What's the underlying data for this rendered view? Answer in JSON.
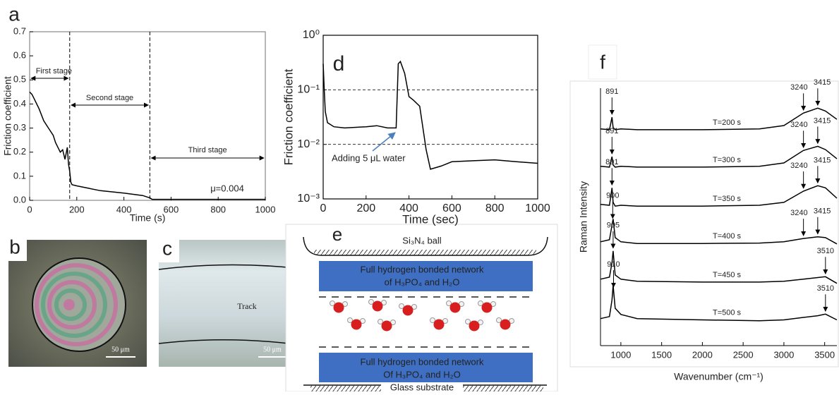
{
  "panel_labels": [
    "a",
    "b",
    "c",
    "d",
    "e",
    "f"
  ],
  "chart_data": [
    {
      "type": "line",
      "xlabel": "Time (s)",
      "ylabel": "Friction coefficient",
      "color": "#000000",
      "x": [
        0,
        10,
        20,
        40,
        60,
        80,
        100,
        110,
        120,
        130,
        140,
        150,
        160,
        165,
        170,
        175,
        180,
        200,
        250,
        300,
        400,
        480,
        510,
        520,
        600,
        800,
        1000
      ],
      "values": [
        0.45,
        0.44,
        0.42,
        0.38,
        0.33,
        0.3,
        0.27,
        0.24,
        0.22,
        0.2,
        0.21,
        0.17,
        0.22,
        0.15,
        0.12,
        0.075,
        0.065,
        0.06,
        0.05,
        0.04,
        0.03,
        0.02,
        0.01,
        0.004,
        0.004,
        0.004,
        0.004
      ],
      "xlim": [
        0,
        1000
      ],
      "ylim": [
        0,
        0.7
      ],
      "xticks": [
        0,
        200,
        400,
        600,
        800,
        1000
      ],
      "yticks": [
        {
          "value": 0,
          "label": "0.0"
        },
        0.1,
        0.2,
        0.3,
        0.4,
        0.5,
        0.6,
        0.7
      ],
      "stage_boundaries": [
        170,
        510
      ],
      "annotations": [
        "First stage",
        "Second stage",
        "Third stage",
        "μ=0.004"
      ]
    },
    {
      "type": "line",
      "xlabel": "Time (sec)",
      "ylabel": "Friction coefficient",
      "color": "#000000",
      "yscale": "log",
      "grid": true,
      "x": [
        0,
        5,
        10,
        20,
        50,
        100,
        200,
        250,
        300,
        340,
        350,
        360,
        380,
        400,
        420,
        450,
        480,
        500,
        550,
        600,
        700,
        800,
        900,
        1000
      ],
      "values": [
        0.3,
        0.1,
        0.04,
        0.025,
        0.021,
        0.02,
        0.021,
        0.022,
        0.02,
        0.02,
        0.3,
        0.33,
        0.2,
        0.075,
        0.065,
        0.05,
        0.008,
        0.0035,
        0.004,
        0.0048,
        0.005,
        0.0052,
        0.0048,
        0.0045
      ],
      "xlim": [
        0,
        1000
      ],
      "ylim": [
        0.001,
        1
      ],
      "xticks": [
        0,
        200,
        400,
        600,
        800,
        1000
      ],
      "yticks": [
        {
          "value": 0.001,
          "label": "10⁻³"
        },
        {
          "value": 0.01,
          "label": "10⁻²"
        },
        {
          "value": 0.1,
          "label": "10⁻¹"
        },
        {
          "value": 1,
          "label": "10⁰"
        }
      ],
      "annotations": [
        "Adding 5 μL water"
      ]
    },
    {
      "type": "line",
      "xlabel": "Wavenumber (cm⁻¹)",
      "ylabel": "Raman Intensity",
      "x": [
        750,
        860,
        891,
        905,
        930,
        1000,
        1200,
        2000,
        2700,
        3000,
        3240,
        3415,
        3510,
        3650
      ],
      "xlim": [
        750,
        3650
      ],
      "ylim": [
        0,
        6.2
      ],
      "xticks": [
        1000,
        1500,
        2000,
        2500,
        3000,
        3500
      ],
      "series": [
        {
          "name": "T=200 s",
          "color": "#000000",
          "values": [
            5.22,
            5.2,
            5.5,
            5.25,
            5.2,
            5.22,
            5.2,
            5.2,
            5.22,
            5.3,
            5.6,
            5.72,
            5.65,
            5.45
          ],
          "peaks": [
            891,
            3240,
            3415
          ]
        },
        {
          "name": "T=300 s",
          "color": "#000000",
          "values": [
            4.32,
            4.3,
            4.55,
            4.35,
            4.3,
            4.32,
            4.3,
            4.3,
            4.32,
            4.4,
            4.7,
            4.8,
            4.72,
            4.5
          ],
          "peaks": [
            891,
            3240,
            3415
          ]
        },
        {
          "name": "T=350 s",
          "color": "#000000",
          "values": [
            3.4,
            3.38,
            3.8,
            3.45,
            3.36,
            3.38,
            3.36,
            3.36,
            3.38,
            3.45,
            3.72,
            3.85,
            3.8,
            3.55
          ],
          "peaks": [
            891,
            3240,
            3415
          ]
        },
        {
          "name": "T=400 s",
          "color": "#000000",
          "values": [
            2.5,
            2.55,
            2.9,
            3.05,
            2.6,
            2.5,
            2.46,
            2.46,
            2.47,
            2.5,
            2.58,
            2.62,
            2.6,
            2.45
          ],
          "peaks": [
            900,
            3240,
            3415
          ]
        },
        {
          "name": "T=450 s",
          "color": "#000000",
          "values": [
            1.6,
            1.65,
            2.0,
            2.28,
            1.7,
            1.6,
            1.55,
            1.53,
            1.53,
            1.55,
            1.6,
            1.64,
            1.66,
            1.5
          ],
          "peaks": [
            905,
            3510
          ]
        },
        {
          "name": "T=500 s",
          "color": "#000000",
          "values": [
            0.65,
            0.7,
            1.1,
            1.45,
            0.9,
            0.75,
            0.65,
            0.62,
            0.6,
            0.62,
            0.68,
            0.72,
            0.76,
            0.62
          ],
          "peaks": [
            910,
            3510
          ]
        }
      ]
    }
  ],
  "micrograph_b": {
    "scale_bar": "50 μm"
  },
  "micrograph_c": {
    "scale_bar": "50 μm",
    "label": "Track"
  },
  "diagram_e": {
    "top": "Si₃N₄ ball",
    "upper_layer": [
      "Full hydrogen bonded network",
      "of H₃PO₄ and H₂O"
    ],
    "lower_layer": [
      "Full hydrogen bonded network",
      "Of H₃PO₄ and H₂O"
    ],
    "bottom": "Glass substrate"
  }
}
